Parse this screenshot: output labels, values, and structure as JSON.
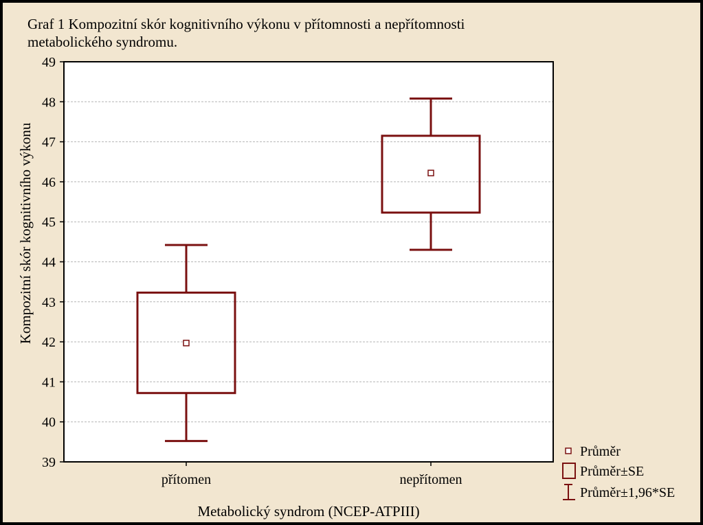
{
  "chart_data": {
    "type": "box",
    "title_line1": "Graf 1 Kompozitní skór kognitivního výkonu v přítomnosti a nepřítomnosti",
    "title_line2": "metabolického syndromu.",
    "xlabel": "Metabolický syndrom (NCEP-ATPIII)",
    "ylabel": "Kompozitní skór kognitivního výkonu",
    "ylim": [
      39,
      49
    ],
    "yticks": [
      39,
      40,
      41,
      42,
      43,
      44,
      45,
      46,
      47,
      48,
      49
    ],
    "grid": true,
    "legend_position": "bottom-right",
    "color": "#7a1010",
    "categories": [
      "přítomen",
      "nepřítomen"
    ],
    "series": [
      {
        "category": "přítomen",
        "mean": 41.97,
        "se_low": 40.72,
        "se_high": 43.23,
        "ci_low": 39.52,
        "ci_high": 44.42
      },
      {
        "category": "nepřítomen",
        "mean": 46.22,
        "se_low": 45.23,
        "se_high": 47.15,
        "ci_low": 44.3,
        "ci_high": 48.08
      }
    ],
    "legend": [
      {
        "symbol": "point",
        "label": "Průměr"
      },
      {
        "symbol": "box",
        "label": "Průměr±SE"
      },
      {
        "symbol": "whisker",
        "label": "Průměr±1,96*SE"
      }
    ]
  }
}
